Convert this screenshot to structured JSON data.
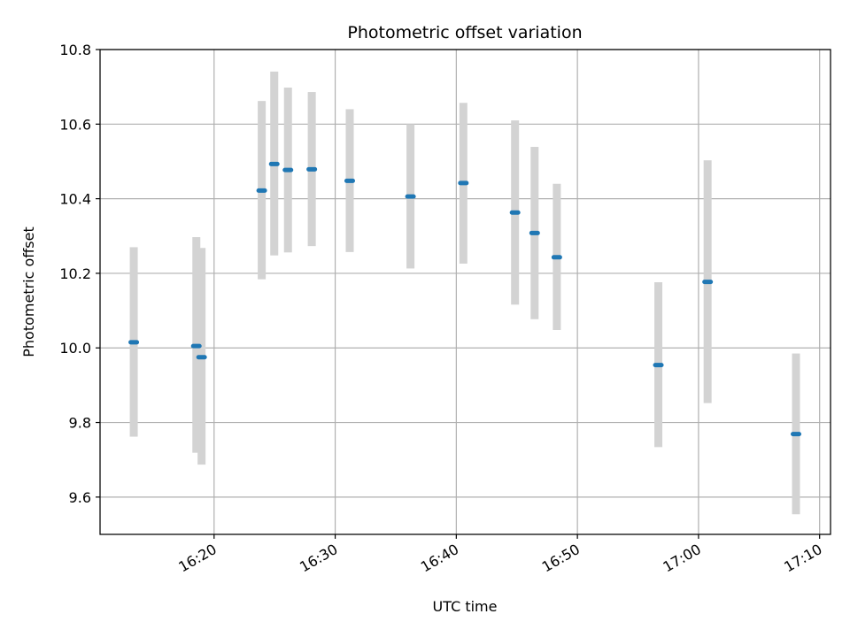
{
  "chart_data": {
    "type": "scatter",
    "title": "Photometric offset variation",
    "xlabel": "UTC time",
    "ylabel": "Photometric offset",
    "xlim": [
      "16:10:35",
      "17:10:54"
    ],
    "ylim": [
      9.5,
      10.8
    ],
    "grid": true,
    "x_ticks": [
      "16:20",
      "16:30",
      "16:40",
      "16:50",
      "17:00",
      "17:10"
    ],
    "y_ticks": [
      "9.6",
      "9.8",
      "10.0",
      "10.2",
      "10.4",
      "10.6",
      "10.8"
    ],
    "series": [
      {
        "marker": "short horizontal dash",
        "color": "#1f77b4",
        "errorbar_color": "#d3d3d3",
        "points": [
          {
            "t": "16:13:22",
            "y": 10.015,
            "lo": 9.762,
            "hi": 10.27
          },
          {
            "t": "16:18:32",
            "y": 10.005,
            "lo": 9.719,
            "hi": 10.297
          },
          {
            "t": "16:18:58",
            "y": 9.975,
            "lo": 9.687,
            "hi": 10.268
          },
          {
            "t": "16:23:56",
            "y": 10.422,
            "lo": 10.184,
            "hi": 10.662
          },
          {
            "t": "16:24:58",
            "y": 10.493,
            "lo": 10.248,
            "hi": 10.741
          },
          {
            "t": "16:26:06",
            "y": 10.477,
            "lo": 10.256,
            "hi": 10.698
          },
          {
            "t": "16:28:04",
            "y": 10.479,
            "lo": 10.273,
            "hi": 10.686
          },
          {
            "t": "16:31:12",
            "y": 10.448,
            "lo": 10.257,
            "hi": 10.64
          },
          {
            "t": "16:36:13",
            "y": 10.406,
            "lo": 10.213,
            "hi": 10.6
          },
          {
            "t": "16:40:35",
            "y": 10.442,
            "lo": 10.226,
            "hi": 10.657
          },
          {
            "t": "16:44:51",
            "y": 10.363,
            "lo": 10.116,
            "hi": 10.61
          },
          {
            "t": "16:46:28",
            "y": 10.308,
            "lo": 10.077,
            "hi": 10.539
          },
          {
            "t": "16:48:18",
            "y": 10.243,
            "lo": 10.048,
            "hi": 10.44
          },
          {
            "t": "16:56:41",
            "y": 9.954,
            "lo": 9.734,
            "hi": 10.176
          },
          {
            "t": "17:00:45",
            "y": 10.177,
            "lo": 9.852,
            "hi": 10.503
          },
          {
            "t": "17:08:03",
            "y": 9.769,
            "lo": 9.554,
            "hi": 9.985
          }
        ]
      }
    ]
  }
}
